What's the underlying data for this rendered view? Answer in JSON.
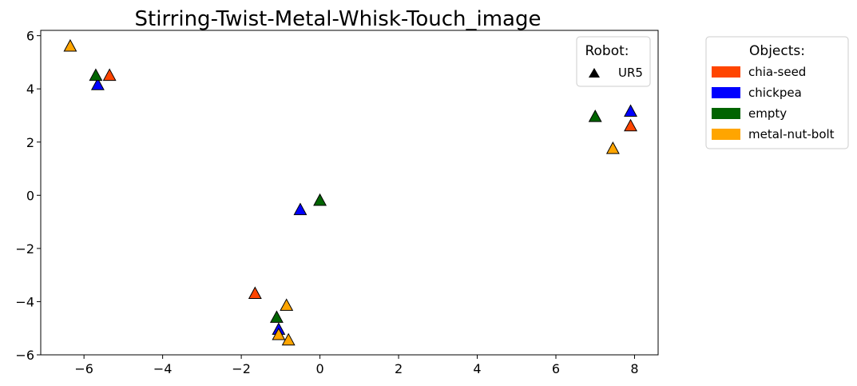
{
  "chart_data": {
    "type": "scatter",
    "title": "Stirring-Twist-Metal-Whisk-Touch_image",
    "xlabel": "",
    "ylabel": "",
    "xlim": [
      -7.1,
      8.6
    ],
    "ylim": [
      -6.0,
      6.2
    ],
    "xticks": [
      -6,
      -4,
      -2,
      0,
      2,
      4,
      6,
      8
    ],
    "yticks": [
      -6,
      -4,
      -2,
      0,
      2,
      4,
      6
    ],
    "marker": "triangle",
    "robot_legend": {
      "title": "Robot:",
      "entries": [
        {
          "label": "UR5",
          "marker": "triangle"
        }
      ]
    },
    "objects_legend": {
      "title": "Objects:",
      "entries": [
        {
          "label": "chia-seed",
          "color": "#FF4500"
        },
        {
          "label": "chickpea",
          "color": "#0000FF"
        },
        {
          "label": "empty",
          "color": "#006400"
        },
        {
          "label": "metal-nut-bolt",
          "color": "#FFA500"
        }
      ]
    },
    "series": [
      {
        "name": "chia-seed",
        "color": "#FF4500",
        "points": [
          [
            -5.35,
            4.5
          ],
          [
            -1.65,
            -3.7
          ],
          [
            7.9,
            2.6
          ]
        ]
      },
      {
        "name": "chickpea",
        "color": "#0000FF",
        "points": [
          [
            -5.65,
            4.15
          ],
          [
            -0.5,
            -0.55
          ],
          [
            7.9,
            3.15
          ],
          [
            -1.05,
            -5.05
          ]
        ]
      },
      {
        "name": "empty",
        "color": "#006400",
        "points": [
          [
            -5.7,
            4.5
          ],
          [
            0.0,
            -0.2
          ],
          [
            7.0,
            2.95
          ],
          [
            -1.1,
            -4.6
          ]
        ]
      },
      {
        "name": "metal-nut-bolt",
        "color": "#FFA500",
        "points": [
          [
            -6.35,
            5.6
          ],
          [
            7.45,
            1.75
          ],
          [
            -0.85,
            -4.15
          ],
          [
            -1.05,
            -5.25
          ],
          [
            -0.8,
            -5.45
          ]
        ]
      }
    ]
  }
}
